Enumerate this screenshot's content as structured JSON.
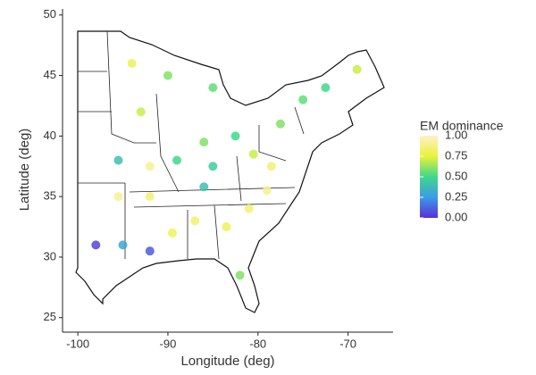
{
  "chart_data": {
    "type": "scatter",
    "x_label": "Longitude (deg)",
    "y_label": "Latitude (deg)",
    "xlim": [
      -101.7,
      -65
    ],
    "xticks": [
      -100,
      -90,
      -80,
      -70
    ],
    "ylim": [
      23.8,
      50.5
    ],
    "yticks": [
      25,
      30,
      35,
      40,
      45,
      50
    ],
    "x": [
      -94,
      -90,
      -85,
      -93,
      -92,
      -92,
      -95,
      -92,
      -89.5,
      -87,
      -83.5,
      -82,
      -81,
      -79,
      -78.5,
      -86,
      -85,
      -80.5,
      -82.5,
      -77.5,
      -75,
      -69,
      -72.5,
      -86,
      -89,
      -98,
      -95.5,
      -95.5
    ],
    "y": [
      46,
      45,
      44,
      42,
      37.5,
      35,
      31,
      30.5,
      32,
      33,
      32.5,
      28.5,
      34,
      35.5,
      37.5,
      35.8,
      37.5,
      38.5,
      40,
      41,
      43,
      45.5,
      44,
      39.5,
      38,
      31,
      35,
      38
    ],
    "values": [
      0.8,
      0.6,
      0.55,
      0.7,
      0.9,
      0.85,
      0.3,
      0.1,
      0.8,
      0.85,
      0.8,
      0.6,
      0.85,
      0.9,
      0.85,
      0.4,
      0.45,
      0.7,
      0.5,
      0.6,
      0.55,
      0.7,
      0.5,
      0.6,
      0.5,
      0.05,
      0.9,
      0.4
    ],
    "legend_title": "EM dominance",
    "colorbar_lim": [
      0,
      1
    ],
    "colorbar_ticks": [
      {
        "value": 0,
        "label": "0.00"
      },
      {
        "value": 0.25,
        "label": "0.25"
      },
      {
        "value": 0.5,
        "label": "0.50"
      },
      {
        "value": 0.75,
        "label": "0.75"
      },
      {
        "value": 1,
        "label": "1.00"
      }
    ],
    "colormap": [
      "#5a2fd6",
      "#3c9be6",
      "#3fd88a",
      "#eaf23a",
      "#fff0c8"
    ]
  }
}
